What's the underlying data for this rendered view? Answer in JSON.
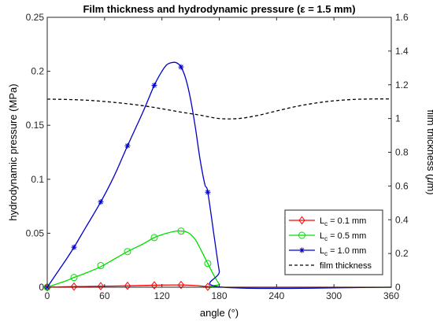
{
  "chart_data": {
    "type": "line",
    "title": "Film thickness and hydrodynamic pressure (ε = 1.5 mm)",
    "xlabel": "angle (°)",
    "ylabel": "hydrodynamic pressure (MPa)",
    "y2label_prefix": "film thickness (",
    "y2label_mu": "μ",
    "y2label_suffix": "m)",
    "xlim": [
      0,
      360
    ],
    "ylim": [
      0,
      0.25
    ],
    "y2lim": [
      0,
      1.6
    ],
    "xticks": [
      0,
      60,
      120,
      180,
      240,
      300,
      360
    ],
    "yticks": [
      0,
      0.05,
      0.1,
      0.15,
      0.2,
      0.25
    ],
    "yticklabels": [
      "0",
      "0.05",
      "0.1",
      "0.15",
      "0.2",
      "0.25"
    ],
    "y2ticks": [
      0,
      0.2,
      0.4,
      0.6,
      0.8,
      1,
      1.2,
      1.4,
      1.6
    ],
    "y2ticklabels": [
      "0",
      "0.2",
      "0.4",
      "0.6",
      "0.8",
      "1",
      "1.2",
      "1.4",
      "1.6"
    ],
    "grid": false,
    "legend_position": "bottom-right",
    "series": [
      {
        "name": "L_c = 0.1 mm",
        "legend_main": "L",
        "legend_sub": "c",
        "legend_rest": " = 0.1 mm",
        "color": "#ff0000",
        "marker": "diamond",
        "axis": "left",
        "x": [
          0,
          10,
          20,
          30,
          40,
          50,
          60,
          70,
          80,
          90,
          100,
          110,
          120,
          130,
          140,
          150,
          160,
          170,
          175,
          180,
          360
        ],
        "y": [
          0,
          0.0002,
          0.0004,
          0.0006,
          0.0007,
          0.0009,
          0.001,
          0.0011,
          0.0013,
          0.0014,
          0.0016,
          0.0018,
          0.002,
          0.0021,
          0.0021,
          0.0018,
          0.0012,
          0.0004,
          0.0001,
          0,
          0
        ],
        "marker_x": [
          0,
          28,
          56,
          84,
          112,
          140,
          168
        ],
        "marker_y": [
          0,
          0.0006,
          0.001,
          0.0013,
          0.0018,
          0.0021,
          0.0004
        ]
      },
      {
        "name": "L_c = 0.5 mm",
        "legend_main": "L",
        "legend_sub": "c",
        "legend_rest": " = 0.5 mm",
        "color": "#00dd00",
        "marker": "circle",
        "axis": "left",
        "x": [
          0,
          10,
          20,
          28,
          40,
          56,
          70,
          84,
          100,
          112,
          125,
          135,
          140,
          145,
          150,
          155,
          160,
          168,
          175,
          180,
          184,
          360
        ],
        "y": [
          0,
          0.003,
          0.006,
          0.009,
          0.013,
          0.019,
          0.026,
          0.033,
          0.04,
          0.046,
          0.05,
          0.052,
          0.052,
          0.0515,
          0.049,
          0.044,
          0.036,
          0.022,
          0.01,
          0.003,
          0,
          0
        ],
        "marker_x": [
          0,
          28,
          56,
          84,
          112,
          140,
          168
        ],
        "marker_y": [
          0,
          0.009,
          0.02,
          0.033,
          0.046,
          0.052,
          0.022
        ]
      },
      {
        "name": "L_c = 1.0 mm",
        "legend_main": "L",
        "legend_sub": "c",
        "legend_rest": " = 1.0 mm",
        "color": "#0000cc",
        "marker": "asterisk",
        "axis": "left",
        "x": [
          0,
          10,
          20,
          28,
          40,
          56,
          70,
          84,
          100,
          112,
          120,
          125,
          130,
          135,
          140,
          145,
          150,
          155,
          160,
          165,
          168,
          175,
          180,
          184,
          360
        ],
        "y": [
          0,
          0.013,
          0.026,
          0.037,
          0.055,
          0.079,
          0.103,
          0.131,
          0.162,
          0.187,
          0.2,
          0.206,
          0.208,
          0.208,
          0.204,
          0.193,
          0.174,
          0.148,
          0.118,
          0.095,
          0.088,
          0.045,
          0.015,
          0,
          0
        ],
        "marker_x": [
          0,
          28,
          56,
          84,
          112,
          140,
          168
        ],
        "marker_y": [
          0,
          0.037,
          0.079,
          0.131,
          0.187,
          0.204,
          0.088
        ]
      },
      {
        "name": "film thickness",
        "legend_main": "film thickness",
        "legend_sub": "",
        "legend_rest": "",
        "color": "#000000",
        "marker": "none",
        "dashed": true,
        "axis": "right",
        "x": [
          0,
          20,
          40,
          60,
          80,
          100,
          120,
          140,
          160,
          180,
          200,
          220,
          240,
          260,
          280,
          300,
          320,
          340,
          360
        ],
        "y": [
          1.115,
          1.113,
          1.109,
          1.101,
          1.09,
          1.076,
          1.058,
          1.038,
          1.02,
          1.0,
          1.0,
          1.018,
          1.045,
          1.071,
          1.091,
          1.105,
          1.113,
          1.116,
          1.116
        ]
      }
    ]
  }
}
